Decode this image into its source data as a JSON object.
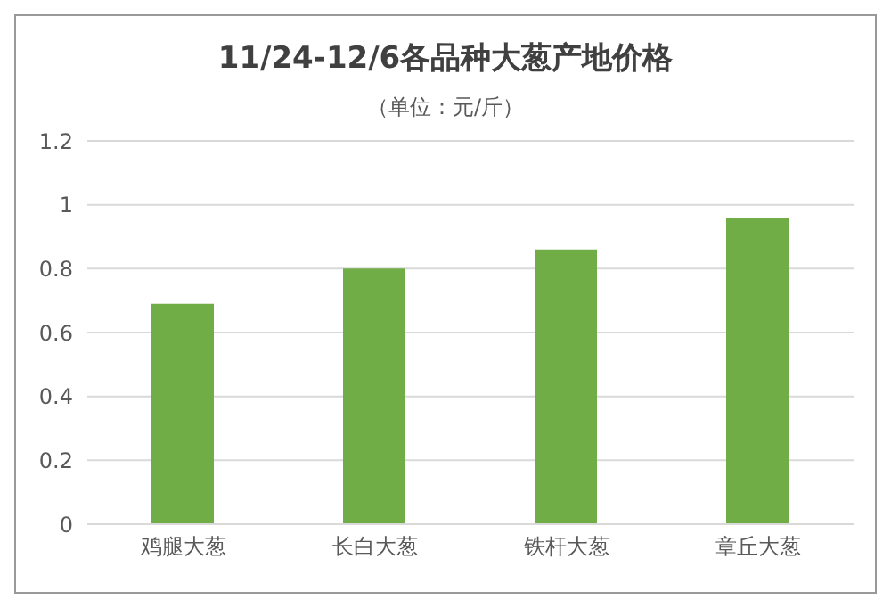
{
  "chart_data": {
    "type": "bar",
    "title": "11/24-12/6各品种大葱产地价格",
    "subtitle": "（单位：元/斤）",
    "categories": [
      "鸡腿大葱",
      "长白大葱",
      "铁杆大葱",
      "章丘大葱"
    ],
    "values": [
      0.69,
      0.8,
      0.86,
      0.96
    ],
    "color": "#70ad47",
    "ylim": [
      0,
      1.2
    ],
    "yticks": [
      0,
      0.2,
      0.4,
      0.6,
      0.8,
      1,
      1.2
    ],
    "grid": "y"
  }
}
